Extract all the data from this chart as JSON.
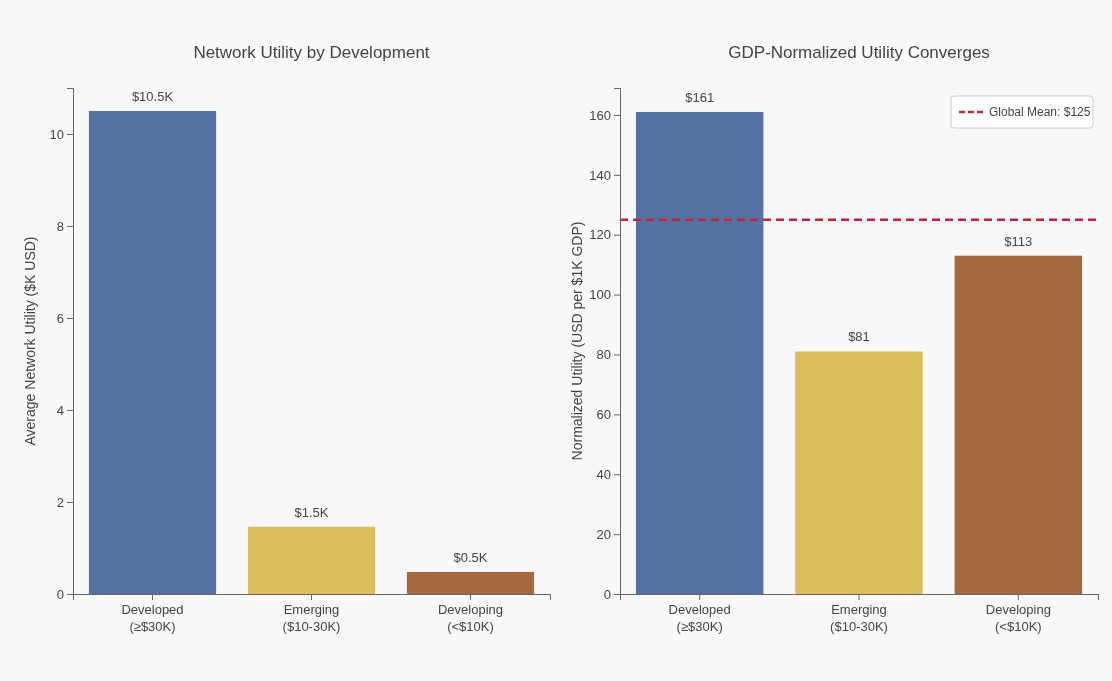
{
  "chart_data": [
    {
      "type": "bar",
      "title": "Network Utility by Development",
      "ylabel": "Average Network Utility ($K USD)",
      "categories": [
        "Developed\n(≥$30K)",
        "Emerging\n($10-30K)",
        "Developing\n(<$10K)"
      ],
      "values": [
        10.5,
        1.46,
        0.48
      ],
      "value_labels": [
        "$10.5K",
        "$1.5K",
        "$0.5K"
      ],
      "colors": [
        "#5571a3",
        "#dcbd5e",
        "#a5693f"
      ],
      "ylim": [
        0,
        11
      ],
      "yticks": [
        0,
        2,
        4,
        6,
        8,
        10
      ],
      "grid": false
    },
    {
      "type": "bar",
      "title": "GDP-Normalized Utility Converges",
      "ylabel": "Normalized Utility (USD per $1K GDP)",
      "categories": [
        "Developed\n(≥$30K)",
        "Emerging\n($10-30K)",
        "Developing\n(<$10K)"
      ],
      "values": [
        161,
        81,
        113
      ],
      "value_labels": [
        "$161",
        "$81",
        "$113"
      ],
      "colors": [
        "#5571a3",
        "#dcbd5e",
        "#a5693f"
      ],
      "ylim": [
        0,
        169
      ],
      "yticks": [
        0,
        20,
        40,
        60,
        80,
        100,
        120,
        140,
        160
      ],
      "grid": false,
      "ref_lines": [
        {
          "axis": "y",
          "value": 125,
          "label": "Global Mean: $125",
          "color": "#c0233a",
          "line_style": "dashed"
        }
      ],
      "legend": "top right"
    }
  ]
}
